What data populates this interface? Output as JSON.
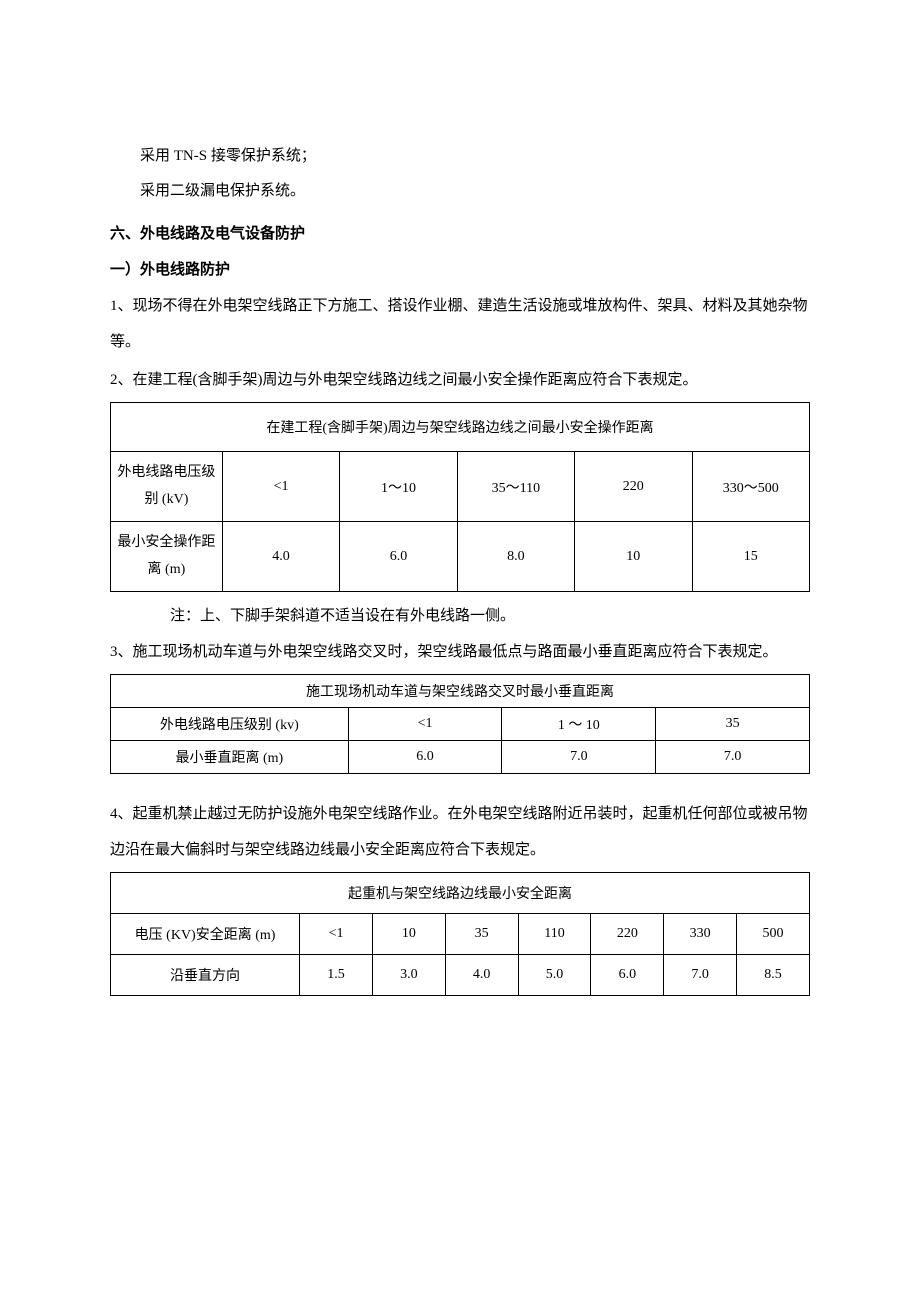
{
  "intro": {
    "line1": "采用 TN-S 接零保护系统；",
    "line2": "采用二级漏电保护系统。"
  },
  "section6": {
    "heading": "六、外电线路及电气设备防护",
    "sub1": "一）外电线路防护",
    "p1": "1、现场不得在外电架空线路正下方施工、搭设作业棚、建造生活设施或堆放构件、架具、材料及其她杂物等。",
    "p2": "2、在建工程(含脚手架)周边与外电架空线路边线之间最小安全操作距离应符合下表规定。",
    "note1": "注：上、下脚手架斜道不适当设在有外电线路一侧。",
    "p3": "3、施工现场机动车道与外电架空线路交叉时，架空线路最低点与路面最小垂直距离应符合下表规定。",
    "p4": "4、起重机禁止越过无防护设施外电架空线路作业。在外电架空线路附近吊装时，起重机任何部位或被吊物边沿在最大偏斜时与架空线路边线最小安全距离应符合下表规定。"
  },
  "table1": {
    "title": "在建工程(含脚手架)周边与架空线路边线之间最小安全操作距离",
    "row1_label": "外电线路电压级别 (kV)",
    "row1_values": [
      "<1",
      "1～10",
      "35～110",
      "220",
      "330～500"
    ],
    "row2_label": "最小安全操作距离 (m)",
    "row2_values": [
      "4.0",
      "6.0",
      "8.0",
      "10",
      "15"
    ],
    "border_color": "#000000",
    "font_size": 14,
    "background": "#ffffff"
  },
  "table2": {
    "title": "施工现场机动车道与架空线路交叉时最小垂直距离",
    "row1_label": "外电线路电压级别 (kv)",
    "row1_values": [
      "<1",
      "1 ～ 10",
      "35"
    ],
    "row2_label": "最小垂直距离 (m)",
    "row2_values": [
      "6.0",
      "7.0",
      "7.0"
    ],
    "border_color": "#000000",
    "font_size": 14,
    "background": "#ffffff"
  },
  "table3": {
    "title": "起重机与架空线路边线最小安全距离",
    "row1_label": "电压 (KV)安全距离 (m)",
    "row1_values": [
      "<1",
      "10",
      "35",
      "110",
      "220",
      "330",
      "500"
    ],
    "row2_label": "沿垂直方向",
    "row2_values": [
      "1.5",
      "3.0",
      "4.0",
      "5.0",
      "6.0",
      "7.0",
      "8.5"
    ],
    "border_color": "#000000",
    "font_size": 14,
    "background": "#ffffff"
  }
}
